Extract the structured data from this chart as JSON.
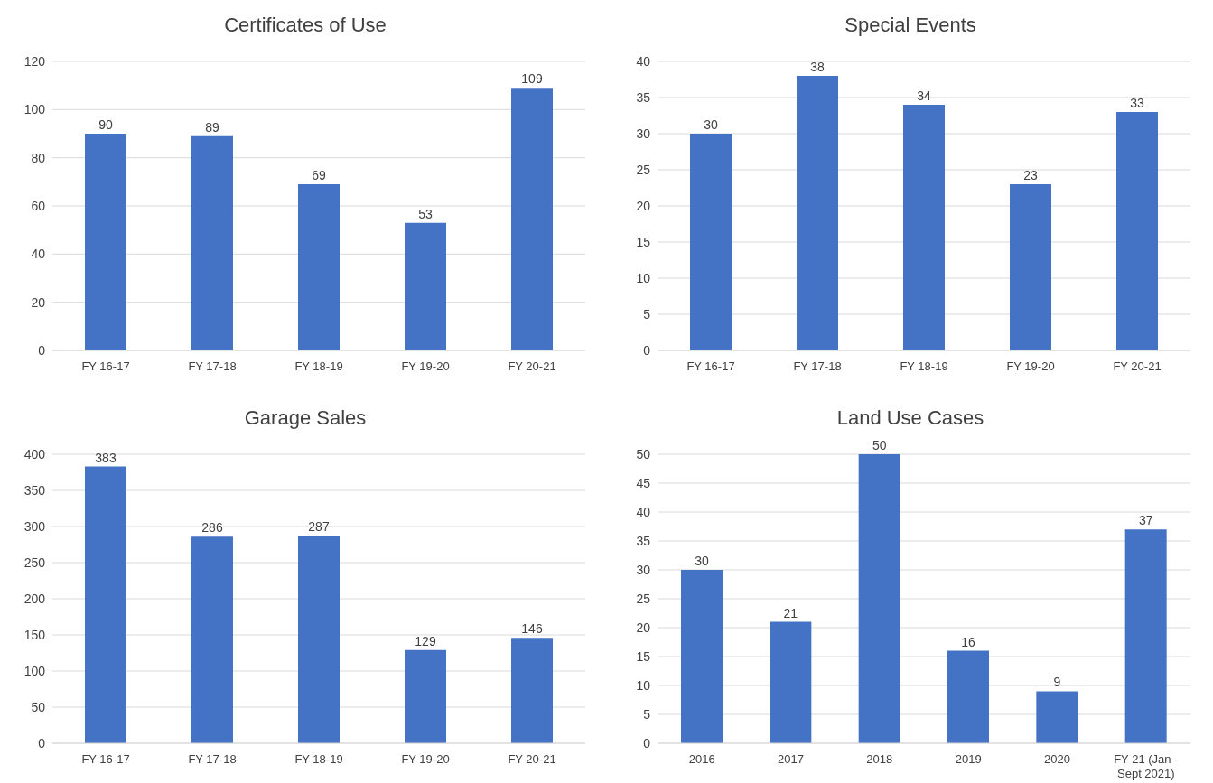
{
  "chart_data": [
    {
      "type": "bar",
      "title": "Certificates of Use",
      "categories": [
        "FY 16-17",
        "FY 17-18",
        "FY 18-19",
        "FY 19-20",
        "FY 20-21"
      ],
      "values": [
        90,
        89,
        69,
        53,
        109
      ],
      "color": "#4472c4",
      "ylim": [
        0,
        120
      ],
      "yticks": [
        0,
        20,
        40,
        60,
        80,
        100,
        120
      ],
      "grid": "y",
      "data_labels": true
    },
    {
      "type": "bar",
      "title": "Special Events",
      "categories": [
        "FY 16-17",
        "FY 17-18",
        "FY 18-19",
        "FY 19-20",
        "FY 20-21"
      ],
      "values": [
        30,
        38,
        34,
        23,
        33
      ],
      "color": "#4472c4",
      "ylim": [
        0,
        40
      ],
      "yticks": [
        0,
        5,
        10,
        15,
        20,
        25,
        30,
        35,
        40
      ],
      "grid": "y",
      "data_labels": true
    },
    {
      "type": "bar",
      "title": "Garage Sales",
      "categories": [
        "FY 16-17",
        "FY 17-18",
        "FY 18-19",
        "FY 19-20",
        "FY 20-21"
      ],
      "values": [
        383,
        286,
        287,
        129,
        146
      ],
      "color": "#4472c4",
      "ylim": [
        0,
        400
      ],
      "yticks": [
        0,
        50,
        100,
        150,
        200,
        250,
        300,
        350,
        400
      ],
      "grid": "y",
      "data_labels": true
    },
    {
      "type": "bar",
      "title": "Land Use Cases",
      "categories": [
        "2016",
        "2017",
        "2018",
        "2019",
        "2020",
        "FY 21 (Jan - Sept 2021)"
      ],
      "values": [
        30,
        21,
        50,
        16,
        9,
        37
      ],
      "color": "#4472c4",
      "ylim": [
        0,
        50
      ],
      "yticks": [
        0,
        5,
        10,
        15,
        20,
        25,
        30,
        35,
        40,
        45,
        50
      ],
      "grid": "y",
      "data_labels": true
    }
  ]
}
